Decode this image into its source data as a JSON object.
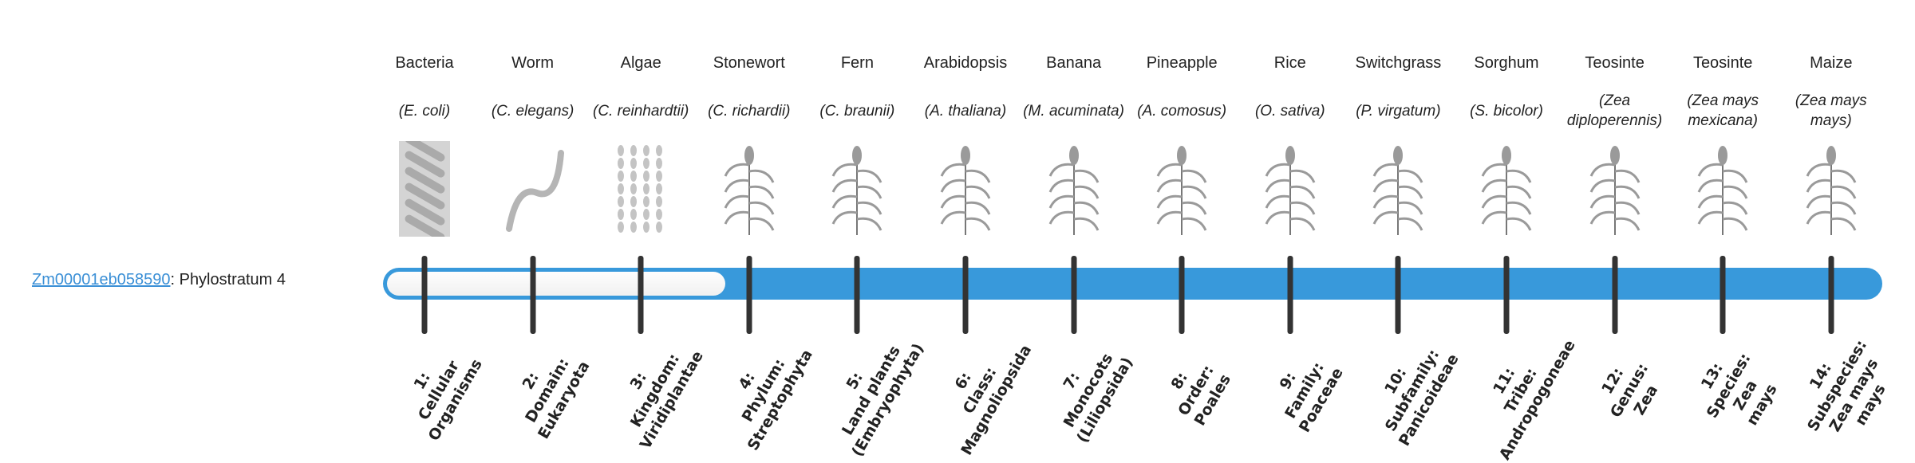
{
  "gene": {
    "id": "Zm00001eb058590",
    "suffix": ": Phylostratum 4",
    "phylostratum": 4
  },
  "colors": {
    "bar": "#3899db",
    "tick": "#333333",
    "link": "#3a8fd6"
  },
  "organisms": [
    {
      "common": "Bacteria",
      "latin": "(E. coli)",
      "icon": "bacteria-icon"
    },
    {
      "common": "Worm",
      "latin": "(C. elegans)",
      "icon": "worm-icon"
    },
    {
      "common": "Algae",
      "latin": "(C. reinhardtii)",
      "icon": "algae-icon"
    },
    {
      "common": "Stonewort",
      "latin": "(C. richardii)",
      "icon": "stonewort-icon"
    },
    {
      "common": "Fern",
      "latin": "(C. braunii)",
      "icon": "fern-icon"
    },
    {
      "common": "Arabidopsis",
      "latin": "(A. thaliana)",
      "icon": "arabidopsis-icon"
    },
    {
      "common": "Banana",
      "latin": "(M. acuminata)",
      "icon": "banana-icon"
    },
    {
      "common": "Pineapple",
      "latin": "(A. comosus)",
      "icon": "pineapple-icon"
    },
    {
      "common": "Rice",
      "latin": "(O. sativa)",
      "icon": "rice-icon"
    },
    {
      "common": "Switchgrass",
      "latin": "(P. virgatum)",
      "icon": "switchgrass-icon"
    },
    {
      "common": "Sorghum",
      "latin": "(S. bicolor)",
      "icon": "sorghum-icon"
    },
    {
      "common": "Teosinte",
      "latin": "(Zea diploperennis)",
      "icon": "teosinte-icon"
    },
    {
      "common": "Teosinte",
      "latin": "(Zea mays mexicana)",
      "icon": "teosinte-mexicana-icon"
    },
    {
      "common": "Maize",
      "latin": "(Zea mays mays)",
      "icon": "maize-icon"
    }
  ],
  "strata": [
    "1:\nCellular\nOrganisms",
    "2:\nDomain:\nEukaryota",
    "3:\nKingdom:\nViridiplantae",
    "4:\nPhylum:\nStreptophyta",
    "5:\nLand plants\n(Embryophyta)",
    "6:\nClass:\nMagnoliopsida",
    "7:\nMonocots\n(Liliopsida)",
    "8:\nOrder:\nPoales",
    "9:\nFamily:\nPoaceae",
    "10:\nSubfamily:\nPanicoideae",
    "11:\nTribe:\nAndropogoneae",
    "12:\nGenus:\nZea",
    "13:\nSpecies:\nZea\nmays",
    "14:\nSubspecies:\nZea mays\nmays"
  ]
}
